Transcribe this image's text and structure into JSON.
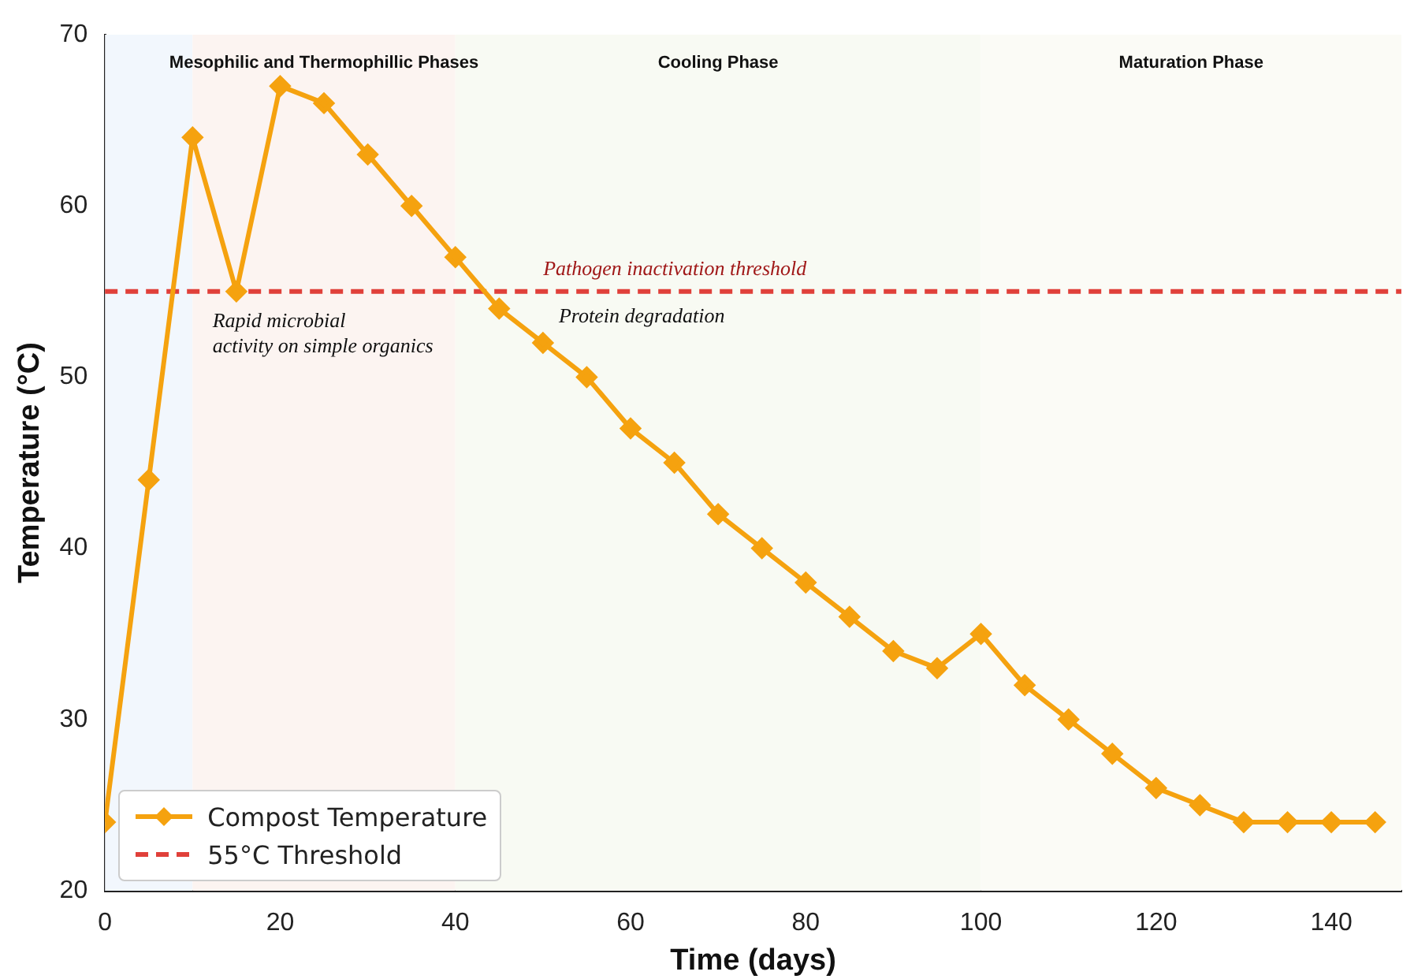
{
  "chart_data": {
    "type": "line",
    "xlabel": "Time (days)",
    "ylabel": "Temperature (°C)",
    "x": [
      0,
      5,
      10,
      15,
      20,
      25,
      30,
      35,
      40,
      45,
      50,
      55,
      60,
      65,
      70,
      75,
      80,
      85,
      90,
      95,
      100,
      105,
      110,
      115,
      120,
      125,
      130,
      135,
      140,
      145
    ],
    "series": [
      {
        "name": "Compost Temperature",
        "color": "#f5a20f",
        "values": [
          24,
          44,
          64,
          55,
          67,
          66,
          63,
          60,
          57,
          54,
          52,
          50,
          47,
          45,
          42,
          40,
          38,
          36,
          34,
          33,
          35,
          32,
          30,
          28,
          26,
          25,
          24,
          24,
          24,
          24
        ]
      }
    ],
    "xlim": [
      0,
      148
    ],
    "xticks": [
      0,
      20,
      40,
      60,
      80,
      100,
      120,
      140
    ],
    "ylim": [
      20,
      70
    ],
    "yticks": [
      20,
      30,
      40,
      50,
      60,
      70
    ],
    "marker": "diamond",
    "line_style": "solid",
    "grid": false,
    "legend": "bottom left",
    "ref_lines": [
      {
        "axis": "y",
        "value": 55,
        "label": "55°C Threshold",
        "color": "#e0403a",
        "line_style": "dashed"
      }
    ],
    "bands": [
      {
        "axis": "x",
        "from": 0,
        "to": 10,
        "label": null,
        "color": "#f2f7fd"
      },
      {
        "axis": "x",
        "from": 10,
        "to": 40,
        "label": "Mesophilic and Thermophillic Phases",
        "color": "#fcf4f1"
      },
      {
        "axis": "x",
        "from": 40,
        "to": 100,
        "label": "Cooling Phase",
        "color": "#f8faf3"
      },
      {
        "axis": "x",
        "from": 100,
        "to": 148,
        "label": "Maturation Phase",
        "color": "#fbfbf6"
      }
    ],
    "annotations": [
      "Pathogen inactivation threshold",
      "Rapid microbial\nactivity on simple organics",
      "Protein degradation"
    ]
  }
}
